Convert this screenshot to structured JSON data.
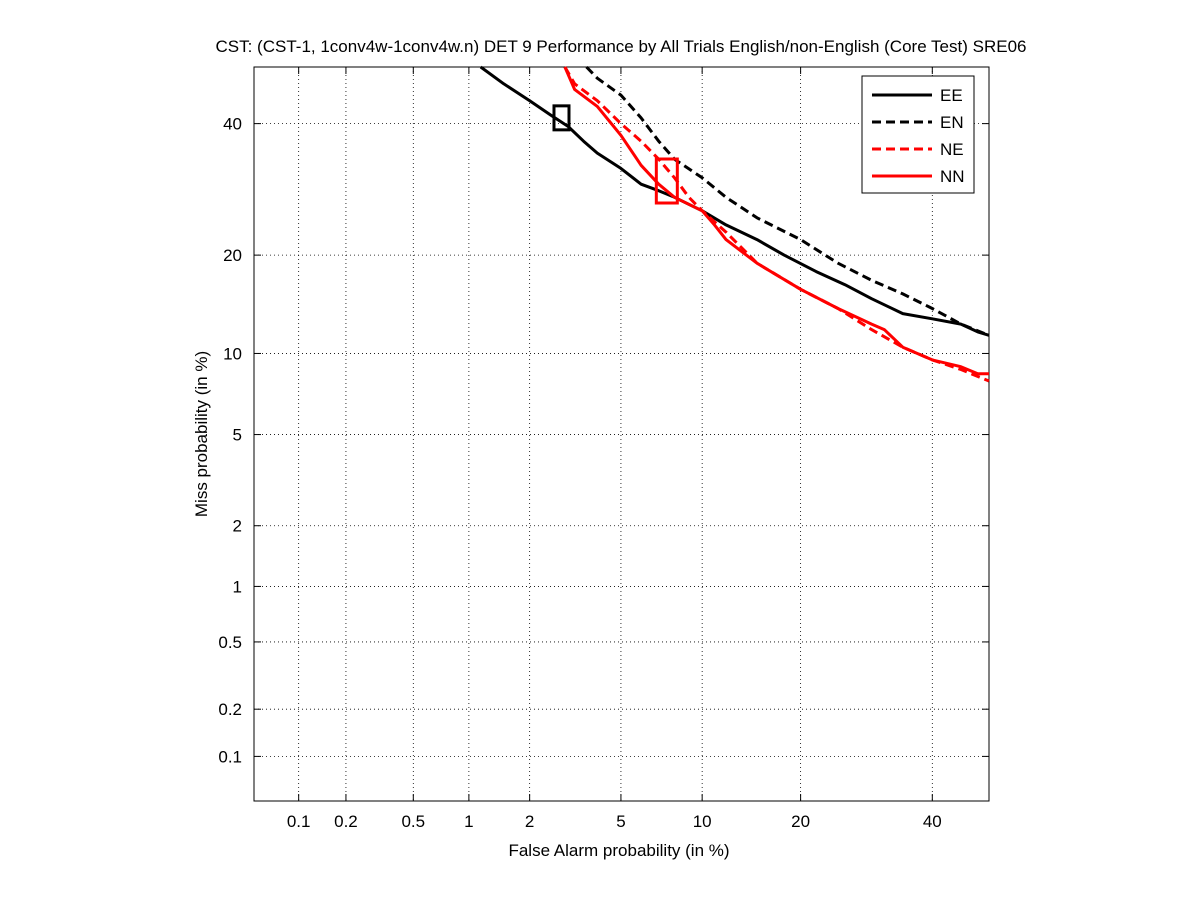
{
  "chart_data": {
    "type": "line",
    "title": "CST: (CST-1, 1conv4w-1conv4w.n) DET 9 Performance by All Trials English/non-English (Core Test) SRE06",
    "xlabel": "False Alarm probability (in %)",
    "ylabel": "Miss probability (in %)",
    "x_scale": "probit",
    "y_scale": "probit",
    "xlim": [
      0.05,
      50
    ],
    "ylim": [
      0.05,
      50
    ],
    "x_ticks": [
      0.1,
      0.2,
      0.5,
      1,
      2,
      5,
      10,
      20,
      40
    ],
    "x_tick_labels": [
      "0.1",
      "0.2",
      "0.5",
      "1",
      "2",
      "5",
      "10",
      "20",
      "40"
    ],
    "y_ticks": [
      0.1,
      0.2,
      0.5,
      1,
      2,
      5,
      10,
      20,
      40
    ],
    "y_tick_labels": [
      "0.1",
      "0.2",
      "0.5",
      "1",
      "2",
      "5",
      "10",
      "20",
      "40"
    ],
    "grid": true,
    "legend_position": "top-right",
    "series": [
      {
        "name": "EE",
        "color": "#000000",
        "style": "solid",
        "x": [
          1.15,
          1.5,
          2.0,
          2.5,
          3.0,
          3.5,
          4.0,
          5.0,
          6.0,
          7.0,
          8.0,
          10.0,
          12.0,
          15.0,
          18.0,
          22.0,
          26.0,
          30.0,
          35.0,
          40.0,
          45.0,
          48.0,
          50.0
        ],
        "y": [
          50.0,
          47.0,
          44.0,
          41.5,
          39.5,
          37.0,
          35.0,
          32.5,
          30.0,
          29.0,
          28.0,
          26.0,
          24.0,
          22.0,
          20.0,
          18.0,
          16.5,
          15.0,
          13.5,
          13.0,
          12.5,
          11.8,
          11.5
        ]
      },
      {
        "name": "EN",
        "color": "#000000",
        "style": "dashed",
        "x": [
          3.6,
          4.0,
          5.0,
          6.0,
          7.0,
          8.0,
          10.0,
          12.0,
          15.0,
          20.0,
          25.0,
          30.0,
          35.0,
          40.0,
          45.0,
          50.0
        ],
        "y": [
          50.0,
          48.0,
          45.0,
          41.0,
          37.0,
          34.0,
          31.0,
          28.0,
          25.0,
          22.0,
          19.0,
          17.0,
          15.5,
          14.0,
          12.5,
          11.5
        ]
      },
      {
        "name": "NE",
        "color": "#ff0000",
        "style": "dashed",
        "x": [
          2.9,
          3.2,
          4.0,
          5.0,
          6.0,
          7.0,
          8.0,
          9.0,
          10.0,
          12.0,
          15.0,
          20.0,
          25.0,
          30.0,
          35.0,
          40.0,
          45.0,
          50.0
        ],
        "y": [
          50.0,
          47.0,
          44.0,
          40.0,
          37.0,
          34.0,
          31.0,
          28.0,
          26.0,
          23.0,
          19.0,
          16.0,
          14.0,
          12.0,
          10.5,
          9.5,
          8.8,
          8.0
        ]
      },
      {
        "name": "NN",
        "color": "#ff0000",
        "style": "solid",
        "x": [
          2.9,
          3.2,
          4.0,
          5.0,
          6.0,
          7.0,
          8.0,
          10.0,
          11.0,
          12.0,
          15.0,
          20.0,
          25.0,
          30.0,
          32.0,
          35.0,
          40.0,
          45.0,
          48.0,
          50.0
        ],
        "y": [
          50.0,
          46.0,
          43.0,
          38.0,
          33.0,
          30.0,
          28.0,
          26.0,
          24.0,
          22.0,
          19.0,
          16.0,
          14.0,
          12.5,
          12.0,
          10.5,
          9.5,
          9.0,
          8.5,
          8.5
        ]
      }
    ],
    "markers": [
      {
        "series": "EE",
        "shape": "box",
        "color": "#000000",
        "x": 2.8,
        "y": 41.0
      },
      {
        "series": "NN",
        "shape": "box",
        "color": "#ff0000",
        "x": 7.5,
        "y": 30.5
      }
    ]
  }
}
